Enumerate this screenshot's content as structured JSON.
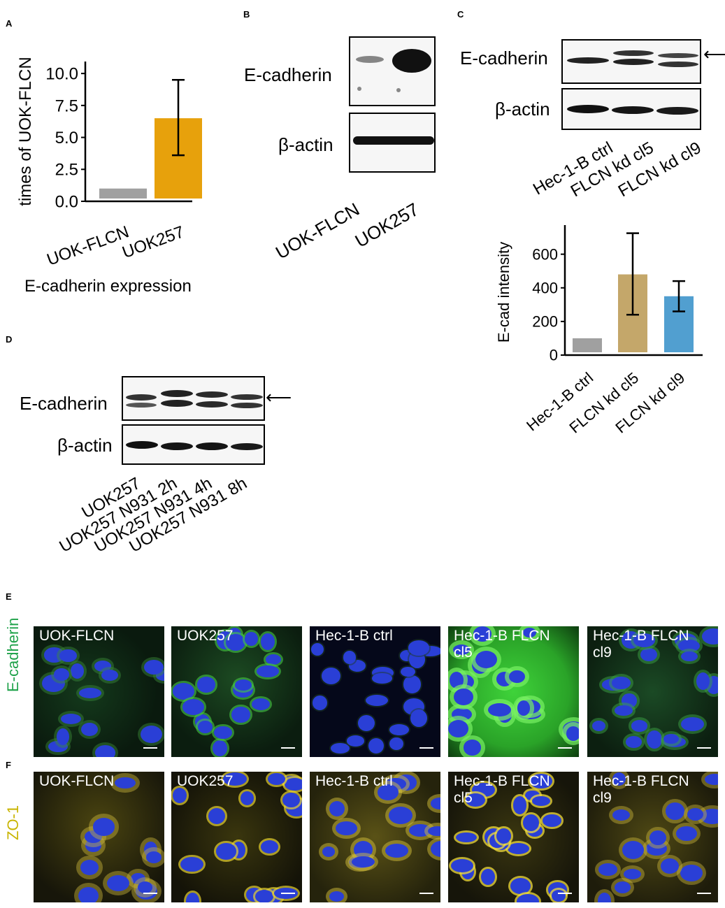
{
  "panels": {
    "A": "A",
    "B": "B",
    "C": "C",
    "D": "D",
    "E": "E",
    "F": "F"
  },
  "panel_b": {
    "row1": "E-cadherin",
    "row2": "β-actin",
    "lanes": [
      "UOK-FLCN",
      "UOK257"
    ]
  },
  "panel_c": {
    "row1": "E-cadherin",
    "row2": "β-actin",
    "lanes": [
      "Hec-1-B ctrl",
      "FLCN kd cl5",
      "FLCN kd cl9"
    ]
  },
  "panel_d": {
    "row1": "E-cadherin",
    "row2": "β-actin",
    "lanes": [
      "UOK257",
      "UOK257 N931 2h",
      "UOK257 N931 4h",
      "UOK257 N931 8h"
    ]
  },
  "chart_data": [
    {
      "type": "bar",
      "panel": "A",
      "categories": [
        "UOK-FLCN",
        "UOK257"
      ],
      "values": [
        1.0,
        6.5
      ],
      "error": [
        [
          1.0,
          1.0
        ],
        [
          3.6,
          9.5
        ]
      ],
      "colors": [
        "#a0a0a0",
        "#e7a10c"
      ],
      "ylabel": "times of UOK-FLCN",
      "xlabel": "E-cadherin expression",
      "yticks": [
        "0.0",
        "2.5",
        "5.0",
        "7.5",
        "10.0"
      ],
      "ylim": [
        0,
        10.5
      ]
    },
    {
      "type": "bar",
      "panel": "C",
      "categories": [
        "Hec-1-B ctrl",
        "FLCN kd cl5",
        "FLCN kd cl9"
      ],
      "values": [
        100,
        480,
        350
      ],
      "error": [
        [
          100,
          100
        ],
        [
          240,
          725
        ],
        [
          260,
          440
        ]
      ],
      "colors": [
        "#a0a0a0",
        "#c4a76a",
        "#519fd0"
      ],
      "ylabel": "E-cad intensity",
      "xlabel": "",
      "yticks": [
        "0",
        "200",
        "400",
        "600"
      ],
      "ylim": [
        0,
        740
      ]
    }
  ],
  "micrographs": {
    "E": {
      "stain": "E-cadherin",
      "stain_color": "#1fa24a",
      "images": [
        "UOK-FLCN",
        "UOK257",
        "Hec-1-B ctrl",
        "Hec-1-B FLCN\ncl5",
        "Hec-1-B FLCN\ncl9"
      ]
    },
    "F": {
      "stain": "ZO-1",
      "stain_color": "#c8b400",
      "images": [
        "UOK-FLCN",
        "UOK257",
        "Hec-1-B ctrl",
        "Hec-1-B FLCN\ncl5",
        "Hec-1-B FLCN\ncl9"
      ]
    }
  }
}
